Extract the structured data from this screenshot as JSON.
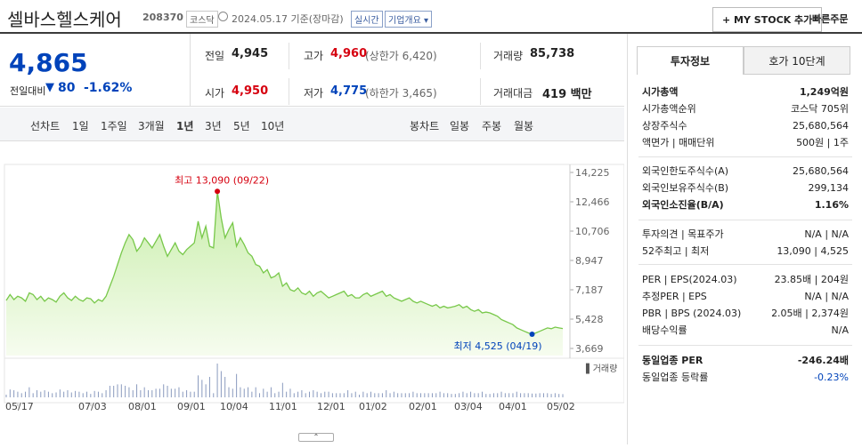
{
  "header": {
    "company_name": "셀바스헬스케어",
    "code": "208370",
    "market_tag": "코스닥",
    "date_text": "2024.05.17 기준(장마감)",
    "realtime_tag": "실시간",
    "company_info_label": "기업개요",
    "my_stock_label": "+ MY STOCK 추가",
    "quick_order_label": "빠른주문"
  },
  "price": {
    "current": "4,865",
    "change_label": "전일대비",
    "change_value": "80",
    "change_pct": "-1.62%"
  },
  "stats": {
    "prev_label": "전일",
    "prev_value": "4,945",
    "high_label": "고가",
    "high_value": "4,960",
    "high_limit": "(상한가 6,420)",
    "volume_label": "거래량",
    "volume_value": "85,738",
    "open_label": "시가",
    "open_value": "4,950",
    "low_label": "저가",
    "low_value": "4,775",
    "low_limit": "(하한가 3,465)",
    "amount_label": "거래대금",
    "amount_value": "419 백만"
  },
  "tabs": {
    "line_chart_label": "선차트",
    "periods": [
      "1일",
      "1주일",
      "3개월",
      "1년",
      "3년",
      "5년",
      "10년"
    ],
    "active_period": "1년",
    "candle_label": "봉차트",
    "candle_periods": [
      "일봉",
      "주봉",
      "월봉"
    ]
  },
  "chart_data": {
    "type": "area",
    "x_tick_labels": [
      "05/17",
      "07/03",
      "08/01",
      "09/01",
      "10/04",
      "11/01",
      "12/01",
      "01/02",
      "02/01",
      "03/04",
      "04/01",
      "05/02"
    ],
    "y_ticks": [
      14225,
      12466,
      10706,
      8947,
      7187,
      5428,
      3669
    ],
    "ylim": [
      3669,
      14225
    ],
    "high_annotation": "최고 13,090 (09/22)",
    "low_annotation": "최저 4,525 (04/19)",
    "volume_legend": "거래량",
    "series": [
      {
        "values": [
          6550,
          6900,
          6600,
          6800,
          6700,
          6500,
          7000,
          6900,
          6600,
          6800,
          6500,
          6700,
          6600,
          6450,
          6800,
          7000,
          6700,
          6550,
          6800,
          6600,
          6500,
          6700,
          6650,
          6400,
          6600,
          6500,
          6800,
          7400,
          8000,
          8700,
          9400,
          10000,
          10500,
          10200,
          9500,
          9800,
          10300,
          10000,
          9700,
          10100,
          10500,
          9800,
          9200,
          9600,
          10000,
          9500,
          9300,
          9600,
          9800,
          10000,
          11300,
          10300,
          11000,
          9800,
          9700,
          13090,
          11500,
          10300,
          10800,
          11200,
          9800,
          10300,
          9900,
          9400,
          9200,
          8700,
          8600,
          8200,
          8400,
          7900,
          8000,
          8200,
          7400,
          7600,
          7200,
          7100,
          7300,
          7000,
          6900,
          7100,
          6800,
          7000,
          7100,
          6900,
          6700,
          6800,
          6900,
          7000,
          7100,
          6800,
          6900,
          6700,
          6700,
          6900,
          7000,
          6800,
          6900,
          7000,
          7100,
          6800,
          6900,
          6700,
          6600,
          6500,
          6600,
          6700,
          6500,
          6400,
          6500,
          6400,
          6300,
          6200,
          6300,
          6100,
          6200,
          6100,
          6150,
          6200,
          6300,
          6100,
          6200,
          6000,
          5900,
          6000,
          5800,
          5850,
          5800,
          5700,
          5600,
          5400,
          5300,
          5200,
          5100,
          4900,
          4800,
          4700,
          4600,
          4525,
          4600,
          4700,
          4800,
          4900,
          4850,
          4950,
          4900,
          4865
        ]
      }
    ]
  },
  "right_panel": {
    "tab_invest": "투자정보",
    "tab_quote": "호가 10단계",
    "rows1": [
      {
        "label": "시가총액",
        "value": "1,249억원"
      },
      {
        "label": "시가총액순위",
        "value": "코스닥 705위"
      },
      {
        "label": "상장주식수",
        "value": "25,680,564"
      },
      {
        "label": "액면가 | 매매단위",
        "value": "500원 | 1주"
      }
    ],
    "rows2": [
      {
        "label": "외국인한도주식수(A)",
        "value": "25,680,564"
      },
      {
        "label": "외국인보유주식수(B)",
        "value": "299,134"
      },
      {
        "label": "외국인소진율(B/A)",
        "value": "1.16%"
      }
    ],
    "rows3": [
      {
        "label": "투자의견 | 목표주가",
        "value": "N/A | N/A"
      },
      {
        "label": "52주최고 | 최저",
        "value": "13,090 | 4,525"
      }
    ],
    "rows4": [
      {
        "label": "PER | EPS(2024.03)",
        "value": "23.85배 | 204원"
      },
      {
        "label": "추정PER | EPS",
        "value": "N/A | N/A"
      },
      {
        "label": "PBR | BPS (2024.03)",
        "value": "2.05배 | 2,374원"
      },
      {
        "label": "배당수익률",
        "value": "N/A"
      }
    ],
    "rows5": [
      {
        "label": "동일업종 PER",
        "value": "-246.24배"
      },
      {
        "label": "동일업종 등락률",
        "value": "-0.23%"
      }
    ]
  },
  "colors": {
    "up": "#d6000f",
    "down": "#0043ba",
    "line": "#78c84a",
    "fill": "#e9f7dc"
  }
}
